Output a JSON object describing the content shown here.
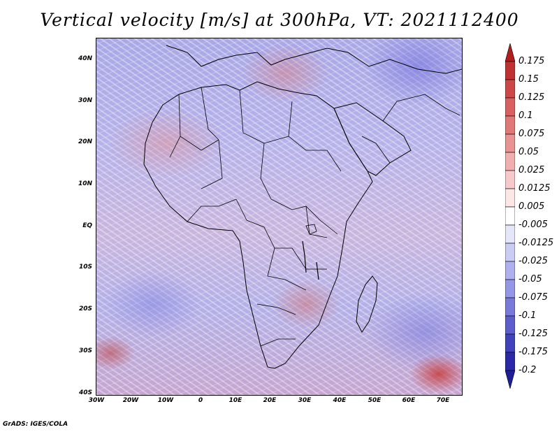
{
  "title": "Vertical velocity [m/s] at 300hPa, VT: 2021112400",
  "variable": "Vertical velocity",
  "units": "m/s",
  "level": "300hPa",
  "valid_time": "2021112400",
  "lat_labels": [
    "40N",
    "30N",
    "20N",
    "10N",
    "EQ",
    "10S",
    "20S",
    "30S",
    "40S"
  ],
  "lon_labels": [
    "30W",
    "20W",
    "10W",
    "0",
    "10E",
    "20E",
    "30E",
    "40E",
    "50E",
    "60E",
    "70E"
  ],
  "colorbar": {
    "labels": [
      "0.175",
      "0.15",
      "0.125",
      "0.1",
      "0.075",
      "0.05",
      "0.025",
      "0.0125",
      "0.005",
      "-0.005",
      "-0.0125",
      "-0.025",
      "-0.05",
      "-0.075",
      "-0.1",
      "-0.125",
      "-0.175",
      "-0.2"
    ],
    "colors": [
      "#b01e1e",
      "#c03232",
      "#cc4848",
      "#d86060",
      "#e07878",
      "#e89292",
      "#f0aeae",
      "#f6caca",
      "#fce6e6",
      "#ffffff",
      "#e6e6fa",
      "#caccf4",
      "#afb0ee",
      "#9496e6",
      "#787ada",
      "#5c5ecc",
      "#4042bc",
      "#2a2aa8",
      "#1e1e96"
    ]
  },
  "credit": "GrADS: IGES/COLA"
}
